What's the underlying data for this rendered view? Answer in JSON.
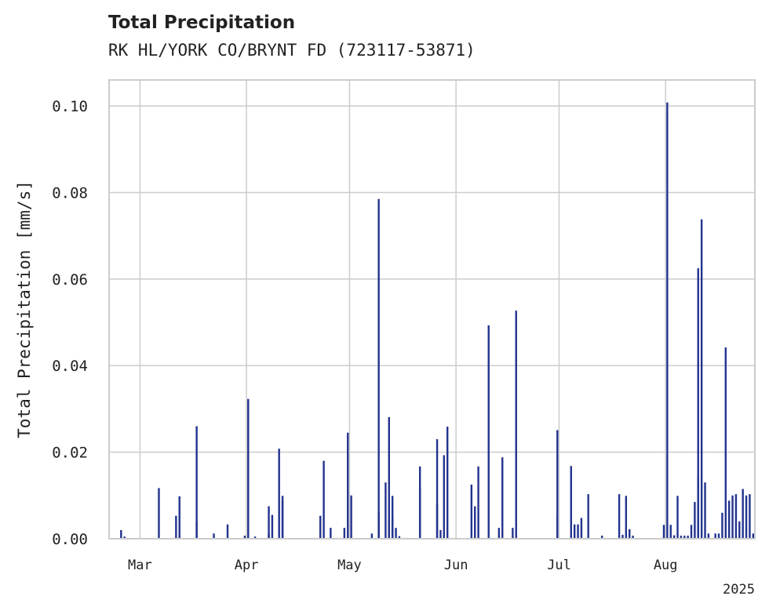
{
  "header": {
    "title": "Total Precipitation",
    "subtitle": "RK HL/YORK CO/BRYNT FD (723117-53871)"
  },
  "chart_data": {
    "type": "bar",
    "title": "Total Precipitation",
    "subtitle": "RK HL/YORK CO/BRYNT FD (723117-53871)",
    "xlabel": "",
    "ylabel": "Total Precipitation [mm/s]",
    "xlim": [
      "2025-02-20",
      "2025-08-27"
    ],
    "ylim": [
      0,
      0.106
    ],
    "x_ticks": [
      {
        "date": "2025-03-01",
        "label": "Mar"
      },
      {
        "date": "2025-04-01",
        "label": "Apr"
      },
      {
        "date": "2025-05-01",
        "label": "May"
      },
      {
        "date": "2025-06-01",
        "label": "Jun"
      },
      {
        "date": "2025-07-01",
        "label": "Jul"
      },
      {
        "date": "2025-08-01",
        "label": "Aug"
      }
    ],
    "x_offset_label": "2025",
    "y_ticks": [
      "0.00",
      "0.02",
      "0.04",
      "0.06",
      "0.08",
      "0.10"
    ],
    "grid": true,
    "colors": {
      "bars": "#23338f",
      "grid": "#cccccc",
      "frame": "#cccccc"
    },
    "series": [
      {
        "x": [
          "2025-02-23",
          "2025-02-24",
          "2025-03-06",
          "2025-03-11",
          "2025-03-12",
          "2025-03-17",
          "2025-03-17",
          "2025-03-22",
          "2025-03-26",
          "2025-03-31",
          "2025-04-01",
          "2025-04-03",
          "2025-04-07",
          "2025-04-07",
          "2025-04-08",
          "2025-04-10",
          "2025-04-11",
          "2025-04-11",
          "2025-04-22",
          "2025-04-23",
          "2025-04-25",
          "2025-04-29",
          "2025-04-30",
          "2025-05-01",
          "2025-05-07",
          "2025-05-09",
          "2025-05-09",
          "2025-05-11",
          "2025-05-12",
          "2025-05-12",
          "2025-05-13",
          "2025-05-13",
          "2025-05-14",
          "2025-05-15",
          "2025-05-21",
          "2025-05-21",
          "2025-05-26",
          "2025-05-26",
          "2025-05-27",
          "2025-05-28",
          "2025-05-29",
          "2025-06-05",
          "2025-06-06",
          "2025-06-07",
          "2025-06-10",
          "2025-06-13",
          "2025-06-14",
          "2025-06-17",
          "2025-06-18",
          "2025-06-30",
          "2025-06-30",
          "2025-07-04",
          "2025-07-05",
          "2025-07-06",
          "2025-07-07",
          "2025-07-09",
          "2025-07-13",
          "2025-07-18",
          "2025-07-19",
          "2025-07-20",
          "2025-07-21",
          "2025-07-22",
          "2025-07-31",
          "2025-08-01",
          "2025-08-02",
          "2025-08-03",
          "2025-08-04",
          "2025-08-05",
          "2025-08-06",
          "2025-08-07",
          "2025-08-08",
          "2025-08-09",
          "2025-08-10",
          "2025-08-10",
          "2025-08-11",
          "2025-08-12",
          "2025-08-13",
          "2025-08-15",
          "2025-08-16",
          "2025-08-17",
          "2025-08-18",
          "2025-08-19",
          "2025-08-20",
          "2025-08-21",
          "2025-08-22",
          "2025-08-23",
          "2025-08-24",
          "2025-08-25",
          "2025-08-26"
        ],
        "values": [
          0.002,
          0.0005,
          0.0117,
          0.0053,
          0.0098,
          0.004,
          0.026,
          0.0012,
          0.0033,
          0.0007,
          0.0323,
          0.0005,
          0.0012,
          0.0075,
          0.0055,
          0.0208,
          0.0087,
          0.0099,
          0.0053,
          0.018,
          0.0025,
          0.0025,
          0.0245,
          0.01,
          0.0012,
          0.0785,
          0.006,
          0.013,
          0.0045,
          0.0281,
          0.005,
          0.0099,
          0.0025,
          0.0006,
          0.0115,
          0.0167,
          0.023,
          0.008,
          0.002,
          0.0193,
          0.0259,
          0.0125,
          0.0075,
          0.0167,
          0.0493,
          0.0025,
          0.0188,
          0.0025,
          0.0527,
          0.0251,
          0.0055,
          0.0168,
          0.0033,
          0.0033,
          0.0048,
          0.0103,
          0.0007,
          0.0103,
          0.0009,
          0.0099,
          0.0022,
          0.0007,
          0.0032,
          0.1008,
          0.0032,
          0.0008,
          0.0099,
          0.0007,
          0.0007,
          0.0007,
          0.0032,
          0.0085,
          0.0145,
          0.0625,
          0.0738,
          0.013,
          0.0012,
          0.0012,
          0.0012,
          0.006,
          0.0442,
          0.0088,
          0.01,
          0.0103,
          0.004,
          0.0115,
          0.01,
          0.0103,
          0.0012
        ]
      }
    ]
  }
}
